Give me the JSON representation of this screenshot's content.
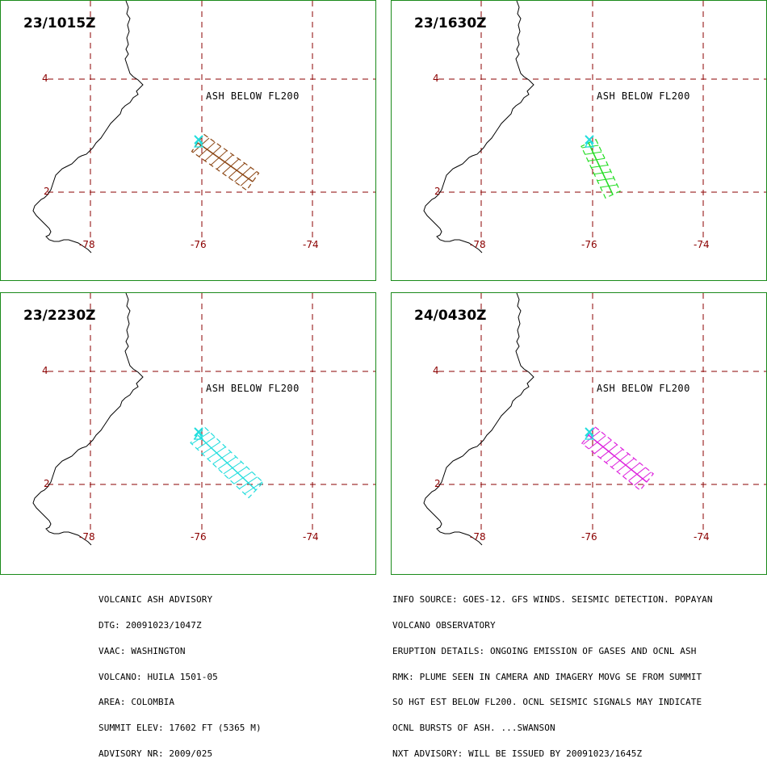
{
  "panels": [
    {
      "time": "23/1015Z",
      "ash_label": "ASH BELOW FL200",
      "color": "#8b4513"
    },
    {
      "time": "23/1630Z",
      "ash_label": "ASH BELOW FL200",
      "color": "#22dd22"
    },
    {
      "time": "23/2230Z",
      "ash_label": "ASH BELOW FL200",
      "color": "#22dddd"
    },
    {
      "time": "24/0430Z",
      "ash_label": "ASH BELOW FL200",
      "color": "#dd22dd"
    }
  ],
  "axes": {
    "lat_labels": [
      "4",
      "2"
    ],
    "lon_labels": [
      "-78",
      "-76",
      "-74"
    ]
  },
  "colors": {
    "panel_border": "#1a8a1a",
    "grid": "#8b0000",
    "volcano_marker": "#22dddd",
    "coastline": "#000000"
  },
  "advisory_left": [
    "VOLCANIC ASH ADVISORY",
    "DTG: 20091023/1047Z",
    "VAAC: WASHINGTON",
    "VOLCANO: HUILA 1501-05",
    "AREA: COLOMBIA",
    "SUMMIT ELEV: 17602 FT (5365 M)",
    "ADVISORY NR: 2009/025"
  ],
  "advisory_right": [
    "INFO SOURCE: GOES-12. GFS WINDS. SEISMIC DETECTION. POPAYAN",
    "VOLCANO OBSERVATORY",
    "ERUPTION DETAILS: ONGOING EMISSION OF GASES AND OCNL ASH",
    "RMK: PLUME SEEN IN CAMERA AND IMAGERY MOVG SE FROM SUMMIT",
    "SO HGT EST BELOW FL200. OCNL SEISMIC SIGNALS MAY INDICATE",
    "OCNL BURSTS OF ASH. ...SWANSON",
    "NXT ADVISORY: WILL BE ISSUED BY 20091023/1645Z"
  ]
}
